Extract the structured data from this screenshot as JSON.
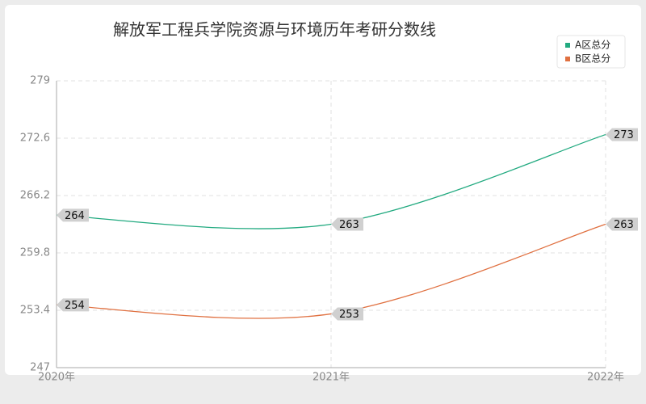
{
  "chart_data": {
    "type": "line",
    "title": "解放军工程兵学院资源与环境历年考研分数线",
    "categories": [
      "2020年",
      "2021年",
      "2022年"
    ],
    "series": [
      {
        "name": "A区总分",
        "color": "#22aa80",
        "values": [
          264,
          263,
          273
        ]
      },
      {
        "name": "B区总分",
        "color": "#e07040",
        "values": [
          254,
          253,
          263
        ]
      }
    ],
    "ylim": [
      247,
      279
    ],
    "yticks": [
      247,
      253.4,
      259.8,
      266.2,
      272.6,
      279
    ],
    "grid": true,
    "legend": "top-right"
  }
}
